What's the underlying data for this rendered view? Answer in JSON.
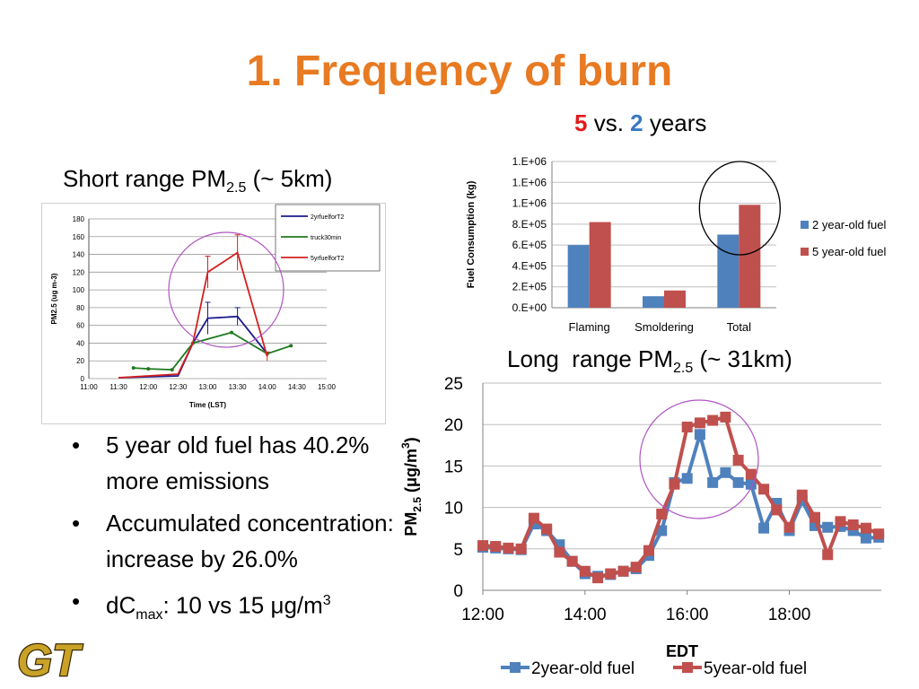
{
  "slide": {
    "title": "1. Frequency of burn",
    "subtitle": {
      "num_a": "5",
      "vs": " vs. ",
      "num_b": "2",
      "suffix": " years"
    },
    "short_heading": {
      "pre": "Short range PM",
      "sub": "2.5",
      "post": " (~ 5km)"
    },
    "long_heading": {
      "pre": "Long  range PM",
      "sub": "2.5",
      "post": " (~ 31km)"
    },
    "bullets": [
      {
        "text": "5 year old fuel has 40.2% more emissions"
      },
      {
        "text": "Accumulated concentration: increase by 26.0%"
      },
      {
        "pre": "dC",
        "sub": "max",
        "mid": ": 10 vs 15 ",
        "mu": "μ",
        "post": "g/m",
        "sup": "3"
      }
    ],
    "bullet_glyph": "•",
    "logo_text": "GT"
  },
  "chart_data": [
    {
      "id": "fuel-consumption",
      "type": "bar",
      "ylabel": "Fuel Consumption (kg)",
      "categories": [
        "Flaming",
        "Smoldering",
        "Total"
      ],
      "series": [
        {
          "name": "2 year-old fuel",
          "color": "#4f81bd",
          "values": [
            600000,
            110000,
            700000
          ]
        },
        {
          "name": "5 year-old fuel",
          "color": "#c0504d",
          "values": [
            820000,
            165000,
            985000
          ]
        }
      ],
      "ylim": [
        0,
        1400000
      ],
      "yticks": [
        0,
        200000,
        400000,
        600000,
        800000,
        1000000,
        1200000,
        1400000
      ],
      "ytick_labels": [
        "0.E+00",
        "2.E+05",
        "4.E+05",
        "6.E+05",
        "8.E+05",
        "1.E+06",
        "1.E+06",
        "1.E+06"
      ],
      "grid": true,
      "legend": "right",
      "annotation": "circle around Total"
    },
    {
      "id": "short-range-pm",
      "type": "line",
      "xlabel": "Time (LST)",
      "ylabel": "PM2.5 (ug m-3)",
      "xticks": [
        11.0,
        11.5,
        12.0,
        12.5,
        13.0,
        13.5,
        14.0,
        14.5,
        15.0
      ],
      "xtick_labels": [
        "11:00",
        "11:30",
        "12:00",
        "12:30",
        "13:00",
        "13:30",
        "14:00",
        "14:30",
        "15:00"
      ],
      "ylim": [
        0,
        180
      ],
      "yticks": [
        0,
        20,
        40,
        60,
        80,
        100,
        120,
        140,
        160,
        180
      ],
      "series": [
        {
          "name": "2yrfuelforT2",
          "color": "#1a1a8c",
          "x": [
            11.5,
            12.0,
            12.5,
            12.75,
            13.0,
            13.5,
            14.0
          ],
          "y": [
            1,
            2,
            3,
            40,
            68,
            70,
            28
          ],
          "err": [
            0,
            0,
            0,
            0,
            18,
            10,
            0
          ]
        },
        {
          "name": "truck30min",
          "color": "#1f7a1f",
          "x": [
            11.75,
            12.0,
            12.4,
            12.75,
            13.4,
            14.0,
            14.4
          ],
          "y": [
            12,
            11,
            10,
            40,
            52,
            28,
            37
          ]
        },
        {
          "name": "5yrfuelforT2",
          "color": "#d42020",
          "x": [
            11.5,
            12.0,
            12.5,
            12.75,
            13.0,
            13.5,
            14.0
          ],
          "y": [
            1,
            3,
            5,
            40,
            120,
            142,
            25
          ],
          "err": [
            0,
            0,
            0,
            0,
            18,
            20,
            5
          ]
        }
      ],
      "grid": true,
      "legend": "top-right",
      "annotation": "circle around peak"
    },
    {
      "id": "long-range-pm",
      "type": "line",
      "xlabel": "EDT",
      "ylabel": {
        "pre": "PM",
        "sub": "2.5",
        "post": " (μg/m",
        "sup": "3",
        "end": ")"
      },
      "xticks": [
        12,
        14,
        16,
        18
      ],
      "xtick_labels": [
        "12:00",
        "14:00",
        "16:00",
        "18:00"
      ],
      "xlim": [
        12,
        19.8
      ],
      "ylim": [
        0,
        25
      ],
      "yticks": [
        0,
        5,
        10,
        15,
        20,
        25
      ],
      "series": [
        {
          "name": "2year-old fuel",
          "color": "#4f81bd",
          "x": [
            12.0,
            12.25,
            12.5,
            12.75,
            13.0,
            13.25,
            13.5,
            13.75,
            14.0,
            14.25,
            14.5,
            14.75,
            15.0,
            15.25,
            15.5,
            15.75,
            16.0,
            16.25,
            16.5,
            16.75,
            17.0,
            17.25,
            17.5,
            17.75,
            18.0,
            18.25,
            18.5,
            18.75,
            19.0,
            19.25,
            19.5,
            19.75
          ],
          "y": [
            5.2,
            5.1,
            5.0,
            4.9,
            8.0,
            7.2,
            5.5,
            3.5,
            2.0,
            1.7,
            1.9,
            2.3,
            2.6,
            4.2,
            7.2,
            13.0,
            13.5,
            18.8,
            13.0,
            14.2,
            13.0,
            12.8,
            7.5,
            10.5,
            7.2,
            10.8,
            7.8,
            7.6,
            7.7,
            7.2,
            6.3,
            6.4
          ]
        },
        {
          "name": "5year-old fuel",
          "color": "#c0504d",
          "x": [
            12.0,
            12.25,
            12.5,
            12.75,
            13.0,
            13.25,
            13.5,
            13.75,
            14.0,
            14.25,
            14.5,
            14.75,
            15.0,
            15.25,
            15.5,
            15.75,
            16.0,
            16.25,
            16.5,
            16.75,
            17.0,
            17.25,
            17.5,
            17.75,
            18.0,
            18.25,
            18.5,
            18.75,
            19.0,
            19.25,
            19.5,
            19.75
          ],
          "y": [
            5.4,
            5.3,
            5.1,
            5.0,
            8.7,
            7.4,
            4.6,
            3.5,
            2.3,
            1.5,
            2.0,
            2.3,
            2.8,
            4.8,
            9.2,
            12.8,
            19.7,
            20.2,
            20.5,
            20.9,
            15.7,
            14.0,
            12.2,
            9.7,
            7.6,
            11.5,
            8.8,
            4.3,
            8.3,
            7.9,
            7.5,
            6.8
          ]
        }
      ],
      "grid": true,
      "legend": "bottom",
      "annotation": "circle around peak"
    }
  ]
}
